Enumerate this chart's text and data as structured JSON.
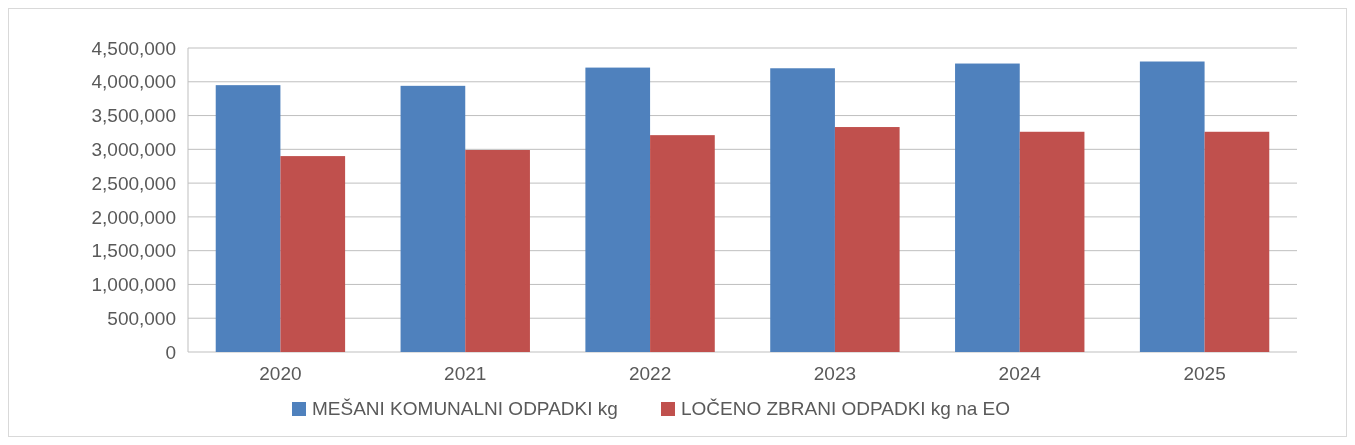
{
  "chart_data": {
    "type": "bar",
    "categories": [
      "2020",
      "2021",
      "2022",
      "2023",
      "2024",
      "2025"
    ],
    "series": [
      {
        "name": "MEŠANI KOMUNALNI ODPADKI kg",
        "color": "#4f81bd",
        "values": [
          3950000,
          3940000,
          4210000,
          4200000,
          4270000,
          4300000
        ]
      },
      {
        "name": "LOČENO ZBRANI ODPADKI kg na EO",
        "color": "#c0504d",
        "values": [
          2900000,
          2990000,
          3210000,
          3330000,
          3260000,
          3260000
        ]
      }
    ],
    "ylim": [
      0,
      4500000
    ],
    "yticks": [
      0,
      {
        "value": 500000,
        "label": "500,000"
      },
      {
        "value": 1000000,
        "label": "1,000,000"
      },
      {
        "value": 1500000,
        "label": "1,500,000"
      },
      {
        "value": 2000000,
        "label": "2,000,000"
      },
      {
        "value": 2500000,
        "label": "2,500,000"
      },
      {
        "value": 3000000,
        "label": "3,000,000"
      },
      {
        "value": 3500000,
        "label": "3,500,000"
      },
      {
        "value": 4000000,
        "label": "4,000,000"
      },
      {
        "value": 4500000,
        "label": "4,500,000"
      }
    ],
    "grid": "y",
    "legend": "bottom"
  }
}
